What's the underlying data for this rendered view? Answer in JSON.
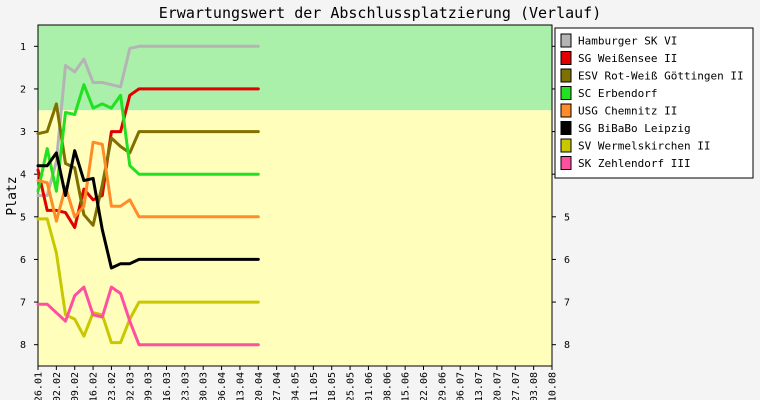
{
  "chart_data": {
    "type": "line",
    "title": "Erwartungswert der Abschlussplatzierung (Verlauf)",
    "xlabel": "",
    "ylabel": "Platz",
    "ylim": [
      0.5,
      8.5
    ],
    "y_inverted": true,
    "yticks": [
      1,
      2,
      3,
      4,
      5,
      6,
      7,
      8
    ],
    "bands": [
      {
        "from": 0.5,
        "to": 2.5,
        "color": "#aaf0aa"
      },
      {
        "from": 2.5,
        "to": 8.5,
        "color": "#ffffbb"
      }
    ],
    "legend_position": "right",
    "categories": [
      "26.01",
      "02.02",
      "09.02",
      "16.02",
      "23.02",
      "02.03",
      "09.03",
      "16.03",
      "23.03",
      "30.03",
      "06.04",
      "13.04",
      "20.04",
      "27.04",
      "04.05",
      "11.05",
      "18.05",
      "25.05",
      "01.06",
      "08.06",
      "15.06",
      "22.06",
      "29.06",
      "06.07",
      "13.07",
      "20.07",
      "27.07",
      "03.08",
      "10.08"
    ],
    "x": [
      1,
      1.5,
      2,
      2.5,
      3,
      3.5,
      4,
      4.5,
      5,
      5.5,
      6,
      6.5,
      7,
      7.5,
      8,
      8.5,
      9,
      9.5,
      10,
      10.5,
      11,
      11.5,
      12,
      12.5,
      13
    ],
    "series": [
      {
        "name": "Hamburger SK VI",
        "color": "#b4b4b4",
        "values": [
          4.5,
          4.5,
          3.7,
          1.45,
          1.6,
          1.3,
          1.85,
          1.85,
          1.9,
          1.95,
          1.05,
          1,
          1,
          1,
          1,
          1,
          1,
          1,
          1,
          1,
          1,
          1,
          1,
          1,
          1
        ]
      },
      {
        "name": "SG Weißensee II",
        "color": "#e00000",
        "values": [
          3.9,
          4.85,
          4.85,
          4.9,
          5.25,
          4.35,
          4.6,
          4.5,
          3.0,
          3.0,
          2.15,
          2,
          2,
          2,
          2,
          2,
          2,
          2,
          2,
          2,
          2,
          2,
          2,
          2,
          2
        ]
      },
      {
        "name": "ESV Rot-Weiß Göttingen II",
        "color": "#807000",
        "values": [
          3.05,
          3.0,
          2.35,
          3.75,
          3.85,
          4.95,
          5.2,
          4.25,
          3.15,
          3.35,
          3.5,
          3,
          3,
          3,
          3,
          3,
          3,
          3,
          3,
          3,
          3,
          3,
          3,
          3,
          3
        ]
      },
      {
        "name": "SC Erbendorf",
        "color": "#22e022",
        "values": [
          4.4,
          3.4,
          4.4,
          2.55,
          2.6,
          1.9,
          2.45,
          2.35,
          2.45,
          2.15,
          3.8,
          4,
          4,
          4,
          4,
          4,
          4,
          4,
          4,
          4,
          4,
          4,
          4,
          4,
          4
        ]
      },
      {
        "name": "USG Chemnitz II",
        "color": "#ff8c28",
        "values": [
          4.15,
          4.2,
          5.1,
          4.3,
          5.0,
          4.75,
          3.25,
          3.3,
          4.75,
          4.75,
          4.6,
          5,
          5,
          5,
          5,
          5,
          5,
          5,
          5,
          5,
          5,
          5,
          5,
          5,
          5
        ]
      },
      {
        "name": "SG BiBaBo Leipzig",
        "color": "#000000",
        "values": [
          3.8,
          3.8,
          3.5,
          4.5,
          3.45,
          4.15,
          4.1,
          5.3,
          6.2,
          6.1,
          6.1,
          6,
          6,
          6,
          6,
          6,
          6,
          6,
          6,
          6,
          6,
          6,
          6,
          6,
          6
        ]
      },
      {
        "name": "SV Wermelskirchen II",
        "color": "#c8c800",
        "values": [
          5.05,
          5.05,
          5.85,
          7.3,
          7.4,
          7.8,
          7.25,
          7.3,
          7.95,
          7.95,
          7.4,
          7,
          7,
          7,
          7,
          7,
          7,
          7,
          7,
          7,
          7,
          7,
          7,
          7,
          7
        ]
      },
      {
        "name": "SK Zehlendorf III",
        "color": "#ff50a0",
        "values": [
          7.05,
          7.05,
          7.25,
          7.45,
          6.85,
          6.65,
          7.3,
          7.35,
          6.65,
          6.8,
          7.45,
          8,
          8,
          8,
          8,
          8,
          8,
          8,
          8,
          8,
          8,
          8,
          8,
          8,
          8
        ]
      }
    ]
  }
}
